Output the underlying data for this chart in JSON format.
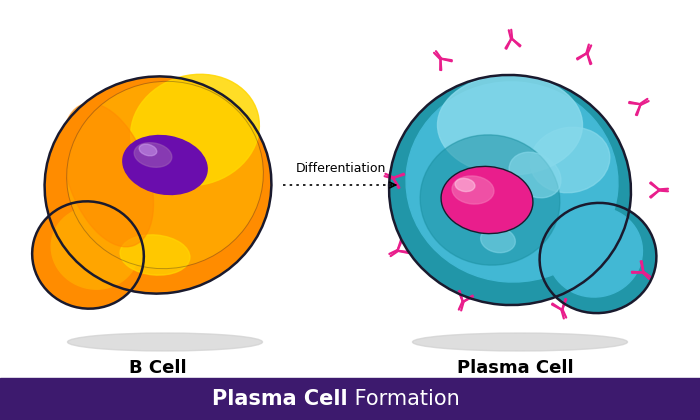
{
  "bg_color": "#ffffff",
  "footer_color": "#3d1a6e",
  "footer_text_bold": "Plasma Cell",
  "footer_text_regular": " Formation",
  "footer_text_color": "#ffffff",
  "label_bcell": "B Cell",
  "label_plasma": "Plasma Cell",
  "arrow_label": "Differentiation",
  "bcell_outer_color": "#ff8c00",
  "bcell_mid_color": "#ffa500",
  "bcell_light_color": "#ffd700",
  "bcell_nucleus_color": "#6a0dad",
  "bcell_nucleus_hi": "#9b59b6",
  "plasma_outer_color": "#2196a8",
  "plasma_mid_color": "#42b8d4",
  "plasma_light_color": "#87d9eb",
  "plasma_inner_color": "#1a8fa0",
  "plasma_nucleus_color": "#e91e8c",
  "plasma_nucleus_hi": "#f472b6",
  "antibody_color": "#e91e8c",
  "outline_color": "#1a1a2e",
  "shadow_color": "#d0d0d0",
  "label_fontsize": 13,
  "arrow_fontsize": 9,
  "footer_fontsize": 15
}
